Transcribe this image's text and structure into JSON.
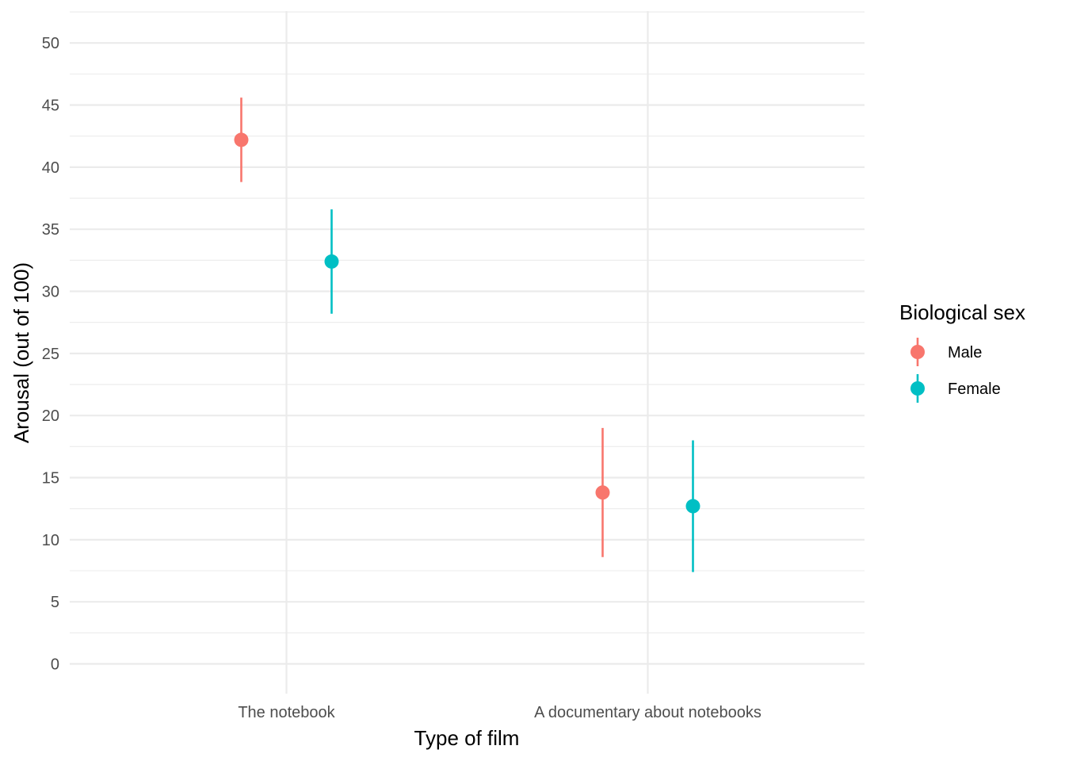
{
  "chart_data": {
    "type": "scatter",
    "title": "",
    "xlabel": "Type of film",
    "ylabel": "Arousal (out of 100)",
    "categories": [
      "The notebook",
      "A documentary about notebooks"
    ],
    "ylim": [
      -2.4,
      52.5
    ],
    "yticks": [
      "0",
      "5",
      "10",
      "15",
      "20",
      "25",
      "30",
      "35",
      "40",
      "45",
      "50"
    ],
    "grid": true,
    "legend": {
      "title": "Biological sex",
      "position": "right"
    },
    "series": [
      {
        "name": "Male",
        "color": "#F8766D",
        "values": [
          42.2,
          13.8
        ],
        "lower": [
          38.8,
          8.6
        ],
        "upper": [
          45.6,
          19.0
        ]
      },
      {
        "name": "Female",
        "color": "#00BFC4",
        "values": [
          32.4,
          12.7
        ],
        "lower": [
          28.2,
          7.4
        ],
        "upper": [
          36.6,
          18.0
        ]
      }
    ]
  }
}
